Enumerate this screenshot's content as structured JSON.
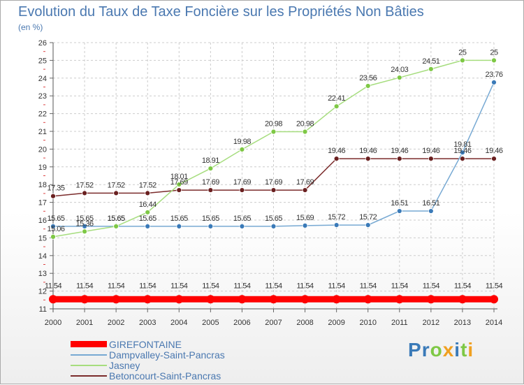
{
  "chart_data": {
    "type": "line",
    "title": "Evolution du Taux de Taxe Foncière sur les Propriétés Non Bâties",
    "ylabel": "(en %)",
    "xlabel": "",
    "x": [
      "2000",
      "2001",
      "2002",
      "2003",
      "2004",
      "2005",
      "2006",
      "2007",
      "2008",
      "2009",
      "2010",
      "2011",
      "2012",
      "2013",
      "2014"
    ],
    "ylim": [
      11,
      26
    ],
    "yticks": [
      11,
      12,
      13,
      14,
      15,
      16,
      17,
      18,
      19,
      20,
      21,
      22,
      23,
      24,
      25,
      26
    ],
    "grid": true,
    "series": [
      {
        "name": "GIREFONTAINE",
        "color": "#ff0000",
        "values": [
          11.54,
          11.54,
          11.54,
          11.54,
          11.54,
          11.54,
          11.54,
          11.54,
          11.54,
          11.54,
          11.54,
          11.54,
          11.54,
          11.54,
          11.54
        ],
        "labels": [
          "11.54",
          "11.54",
          "11.54",
          "11.54",
          "11.54",
          "11.54",
          "11.54",
          "11.54",
          "11.54",
          "11.54",
          "11.54",
          "11.54",
          "11.54",
          "11.54",
          "11.54"
        ]
      },
      {
        "name": "Dampvalley-Saint-Pancras",
        "color": "#77a9d3",
        "marker": "#3a7ab8",
        "values": [
          15.65,
          15.65,
          15.65,
          15.65,
          15.65,
          15.65,
          15.65,
          15.65,
          15.69,
          15.72,
          15.72,
          16.51,
          16.51,
          19.81,
          23.76
        ],
        "labels": [
          "15.65",
          "15.65",
          "15.65",
          "15.65",
          "15.65",
          "15.65",
          "15.65",
          "15.65",
          "15.69",
          "15.72",
          "15.72",
          "16.51",
          "16.51",
          "19.81",
          "23.76"
        ]
      },
      {
        "name": "Jasney",
        "color": "#a6dd7e",
        "marker": "#7ec845",
        "values": [
          15.06,
          15.36,
          15.65,
          16.44,
          18.01,
          18.91,
          19.98,
          20.98,
          20.98,
          22.41,
          23.56,
          24.03,
          24.51,
          25,
          25
        ],
        "labels": [
          "15.06",
          "15.36",
          "15.65",
          "16.44",
          "18.01",
          "18.91",
          "19.98",
          "20.98",
          "20.98",
          "22.41",
          "23.56",
          "24.03",
          "24.51",
          "25",
          "25"
        ]
      },
      {
        "name": "Betoncourt-Saint-Pancras",
        "color": "#7b2b2b",
        "marker": "#6a2020",
        "values": [
          17.35,
          17.52,
          17.52,
          17.52,
          17.69,
          17.69,
          17.69,
          17.69,
          17.69,
          19.46,
          19.46,
          19.46,
          19.46,
          19.46,
          19.46
        ],
        "labels": [
          "17.35",
          "17.52",
          "17.52",
          "17.52",
          "17.69",
          "17.69",
          "17.69",
          "17.69",
          "17.69",
          "19.46",
          "19.46",
          "19.46",
          "19.46",
          "19.46",
          "19.46"
        ]
      }
    ],
    "legend_position": "bottom-left"
  },
  "brand": {
    "letters": [
      "P",
      "r",
      "o",
      "x",
      "i",
      "t",
      "i"
    ],
    "colors": [
      "#3a7ab8",
      "#3a7ab8",
      "#7ec845",
      "#f0a020",
      "#3a7ab8",
      "#7ec845",
      "#f0a020"
    ]
  }
}
